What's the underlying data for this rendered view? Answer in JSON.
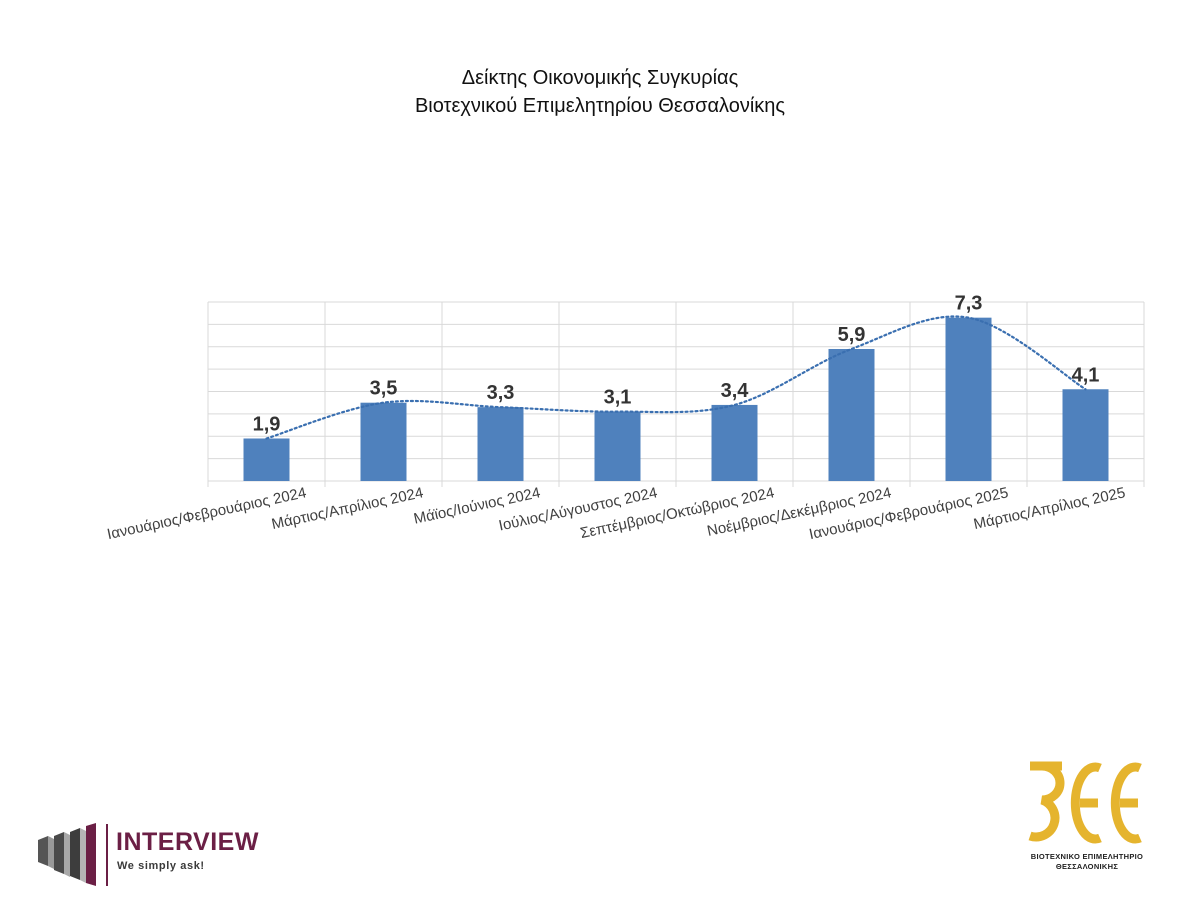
{
  "chart_data": {
    "type": "bar",
    "title": [
      "Δείκτης Οικονομικής Συγκυρίας",
      "Βιοτεχνικού Επιμελητηρίου Θεσσαλονίκης"
    ],
    "categories": [
      "Ιανουάριος/Φεβρουάριος 2024",
      "Μάρτιος/Απρίλιος 2024",
      "Μάϊος/Ιούνιος 2024",
      "Ιούλιος/Αύγουστος 2024",
      "Σεπτέμβριος/Οκτώβριος 2024",
      "Νοέμβριος/Δεκέμβριος 2024",
      "Ιανουάριος/Φεβρουάριος 2025",
      "Μάρτιος/Απρίλιος 2025"
    ],
    "values": [
      1.9,
      3.5,
      3.3,
      3.1,
      3.4,
      5.9,
      7.3,
      4.1
    ],
    "value_labels": [
      "1,9",
      "3,5",
      "3,3",
      "3,1",
      "3,4",
      "5,9",
      "7,3",
      "4,1"
    ],
    "ylim": [
      0,
      8
    ],
    "grid": true,
    "legend": "none",
    "trendline": "dotted smooth curve through values",
    "colors": {
      "bar": "#4f81bd",
      "trend": "#3a6fb0",
      "grid": "#d9d9d9"
    }
  },
  "logos": {
    "interview": {
      "name": "INTERVIEW",
      "tagline": "We simply ask!",
      "color": "#6b1f45"
    },
    "bee": {
      "mark": "ΒΕΕ",
      "line1": "ΒΙΟΤΕΧΝΙΚΟ ΕΠΙΜΕΛΗΤΗΡΙΟ",
      "line2": "ΘΕΣΣΑΛΟΝΙΚΗΣ",
      "color": "#e5b42e"
    }
  }
}
